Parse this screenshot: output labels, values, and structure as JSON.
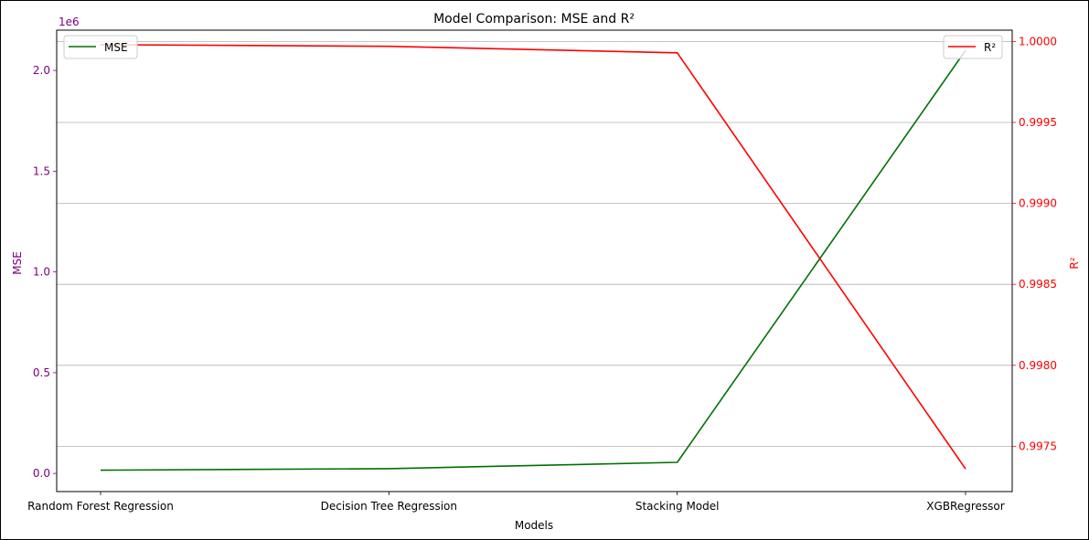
{
  "chart_data": {
    "type": "line",
    "title": "Model Comparison: MSE and R²",
    "xlabel": "Models",
    "categories": [
      "Random Forest Regression",
      "Decision Tree Regression",
      "Stacking Model",
      "XGBRegressor"
    ],
    "y_left": {
      "label": "MSE",
      "color": "#800080",
      "offset_text": "1e6",
      "ylim": [
        -0.09,
        2.2
      ],
      "ticks": [
        0.0,
        0.5,
        1.0,
        1.5,
        2.0
      ],
      "tick_labels": [
        "0.0",
        "0.5",
        "1.0",
        "1.5",
        "2.0"
      ]
    },
    "y_right": {
      "label": "R²",
      "color": "#ff0000",
      "ylim": [
        0.99722,
        1.00007
      ],
      "ticks": [
        0.9975,
        0.998,
        0.9985,
        0.999,
        0.9995,
        1.0
      ],
      "tick_labels": [
        "0.9975",
        "0.9980",
        "0.9985",
        "0.9990",
        "0.9995",
        "1.0000"
      ]
    },
    "series": [
      {
        "name": "MSE",
        "axis": "left",
        "color": "#007000",
        "values": [
          16000,
          24000,
          55000,
          2100000
        ]
      },
      {
        "name": "R²",
        "axis": "right",
        "color": "#ff0000",
        "values": [
          0.99998,
          0.99997,
          0.99993,
          0.99736
        ]
      }
    ],
    "grid": "right axis horizontal",
    "legend": [
      {
        "name": "MSE",
        "placement": "upper-left"
      },
      {
        "name": "R²",
        "placement": "upper-right"
      }
    ]
  }
}
